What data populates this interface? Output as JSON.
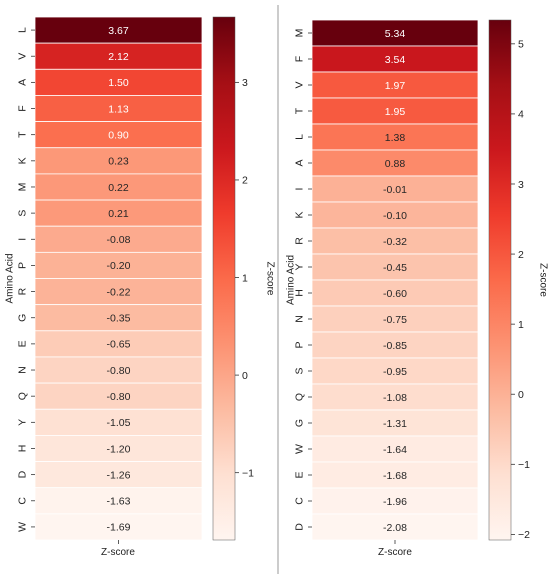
{
  "chart_data": [
    {
      "type": "heatmap",
      "xlabel": "Z-score",
      "ylabel": "Amino Acid",
      "categories": [
        "L",
        "V",
        "A",
        "F",
        "T",
        "K",
        "M",
        "S",
        "I",
        "P",
        "R",
        "G",
        "E",
        "N",
        "Q",
        "Y",
        "H",
        "D",
        "C",
        "W"
      ],
      "values": [
        3.67,
        2.12,
        1.5,
        1.13,
        0.9,
        0.23,
        0.22,
        0.21,
        -0.08,
        -0.2,
        -0.22,
        -0.35,
        -0.65,
        -0.8,
        -0.8,
        -1.05,
        -1.2,
        -1.26,
        -1.63,
        -1.69
      ],
      "value_labels": [
        "3.67",
        "2.12",
        "1.50",
        "1.13",
        "0.90",
        "0.23",
        "0.22",
        "0.21",
        "-0.08",
        "-0.20",
        "-0.22",
        "-0.35",
        "-0.65",
        "-0.80",
        "-0.80",
        "-1.05",
        "-1.20",
        "-1.26",
        "-1.63",
        "-1.69"
      ],
      "colorbar": {
        "label": "Z-score",
        "range": [
          -1.69,
          3.67
        ],
        "ticks": [
          -1,
          0,
          1,
          2,
          3
        ],
        "tick_labels": [
          "−1",
          "0",
          "1",
          "2",
          "3"
        ],
        "colormap": "Reds"
      }
    },
    {
      "type": "heatmap",
      "xlabel": "Z-score",
      "ylabel": "Amino Acid",
      "categories": [
        "M",
        "F",
        "V",
        "T",
        "L",
        "A",
        "I",
        "K",
        "R",
        "Y",
        "H",
        "N",
        "P",
        "S",
        "Q",
        "G",
        "W",
        "E",
        "C",
        "D"
      ],
      "values": [
        5.34,
        3.54,
        1.97,
        1.95,
        1.38,
        0.88,
        -0.01,
        -0.1,
        -0.32,
        -0.45,
        -0.6,
        -0.75,
        -0.85,
        -0.95,
        -1.08,
        -1.31,
        -1.64,
        -1.68,
        -1.96,
        -2.08
      ],
      "value_labels": [
        "5.34",
        "3.54",
        "1.97",
        "1.95",
        "1.38",
        "0.88",
        "-0.01",
        "-0.10",
        "-0.32",
        "-0.45",
        "-0.60",
        "-0.75",
        "-0.85",
        "-0.95",
        "-1.08",
        "-1.31",
        "-1.64",
        "-1.68",
        "-1.96",
        "-2.08"
      ],
      "colorbar": {
        "label": "Z-score",
        "range": [
          -2.08,
          5.34
        ],
        "ticks": [
          -2,
          -1,
          0,
          1,
          2,
          3,
          4,
          5
        ],
        "tick_labels": [
          "−2",
          "−1",
          "0",
          "1",
          "2",
          "3",
          "4",
          "5"
        ],
        "colormap": "Reds"
      }
    }
  ]
}
